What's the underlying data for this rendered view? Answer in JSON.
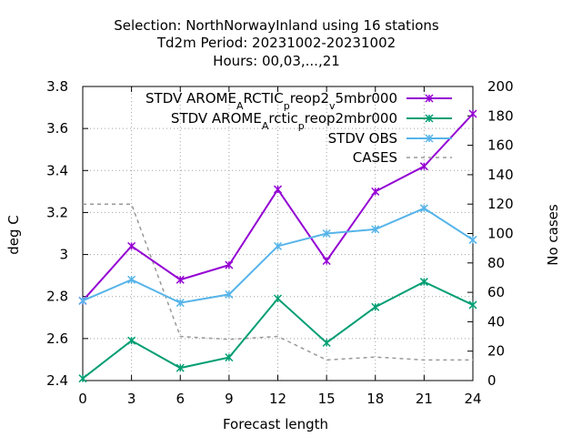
{
  "chart_data": {
    "type": "line",
    "title_lines": [
      "Selection: NorthNorwayInland using    16 stations",
      "Td2m   Period: 20231002-20231002",
      "Hours:  00,03,...,21"
    ],
    "xlabel": "Forecast length",
    "ylabel": "deg C",
    "y2label": "No cases",
    "x": [
      0,
      3,
      6,
      9,
      12,
      15,
      18,
      21,
      24
    ],
    "xlim": [
      0,
      24
    ],
    "ylim": [
      2.4,
      3.8
    ],
    "y2lim": [
      0,
      200
    ],
    "x_ticks": [
      "0",
      "3",
      "6",
      "9",
      "12",
      "15",
      "18",
      "21",
      "24"
    ],
    "y_ticks": [
      "2.4",
      "2.6",
      "2.8",
      "3",
      "3.2",
      "3.4",
      "3.6",
      "3.8"
    ],
    "y2_ticks": [
      "0",
      "20",
      "40",
      "60",
      "80",
      "100",
      "120",
      "140",
      "160",
      "180",
      "200"
    ],
    "legend_position": "top-right",
    "series": [
      {
        "name": "STDV AROME_ARCTIC_preop2_v5mbr000",
        "legend_parts": [
          "STDV AROME",
          "A",
          "RCTIC",
          "p",
          "reop2",
          "v",
          "5mbr000"
        ],
        "axis": "left",
        "color": "#9400d3",
        "marker": "x",
        "values": [
          2.78,
          3.04,
          2.88,
          2.95,
          3.31,
          2.97,
          3.3,
          3.42,
          3.67
        ]
      },
      {
        "name": "STDV AROME_Arctic_preop2mbr000",
        "legend_parts": [
          "STDV AROME",
          "A",
          "rctic",
          "p",
          "reop2mbr000"
        ],
        "axis": "left",
        "color": "#009e73",
        "marker": "x",
        "values": [
          2.41,
          2.59,
          2.46,
          2.51,
          2.79,
          2.58,
          2.75,
          2.87,
          2.76
        ]
      },
      {
        "name": "STDV OBS",
        "axis": "left",
        "color": "#56b4e9",
        "marker": "x",
        "values": [
          2.78,
          2.88,
          2.77,
          2.81,
          3.04,
          3.1,
          3.12,
          3.22,
          3.07
        ]
      },
      {
        "name": "CASES",
        "axis": "right",
        "color": "#999999",
        "dashed": true,
        "values": [
          120,
          120,
          30,
          28,
          30,
          14,
          16,
          14,
          14
        ]
      }
    ]
  }
}
